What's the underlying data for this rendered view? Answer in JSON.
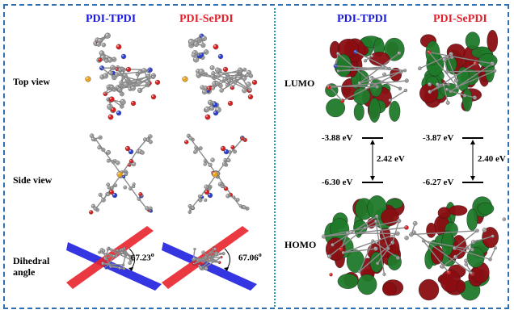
{
  "left_panel": {
    "columns": [
      "PDI-TPDI",
      "PDI-SePDI"
    ],
    "rows": [
      "Top view",
      "Side view",
      "Dihedral angle"
    ],
    "dihedral_angles": [
      "67.23",
      "67.06"
    ],
    "degree_symbol": "o"
  },
  "right_panel": {
    "columns": [
      "PDI-TPDI",
      "PDI-SePDI"
    ],
    "rows": [
      "LUMO",
      "HOMO"
    ],
    "levels": [
      {
        "lumo": "-3.88 eV",
        "homo": "-6.30 eV",
        "gap": "2.42 eV"
      },
      {
        "lumo": "-3.87 eV",
        "homo": "-6.27 eV",
        "gap": "2.40 eV"
      }
    ]
  },
  "colors": {
    "frame": "#2f6fb0",
    "divider": "#1f9aa8",
    "title_tpdi": "#1a1adf",
    "title_sepdi": "#e0202a",
    "lobe_red": "#8b0d12",
    "lobe_green": "#1f7a2a",
    "atom_carbon": "#9c9c9c",
    "atom_oxygen": "#d81e1e",
    "atom_nitrogen": "#2a3fd0",
    "atom_sulfur": "#e8a21c",
    "plane_blue": "#2a2ae0",
    "plane_red": "#e8242c"
  }
}
